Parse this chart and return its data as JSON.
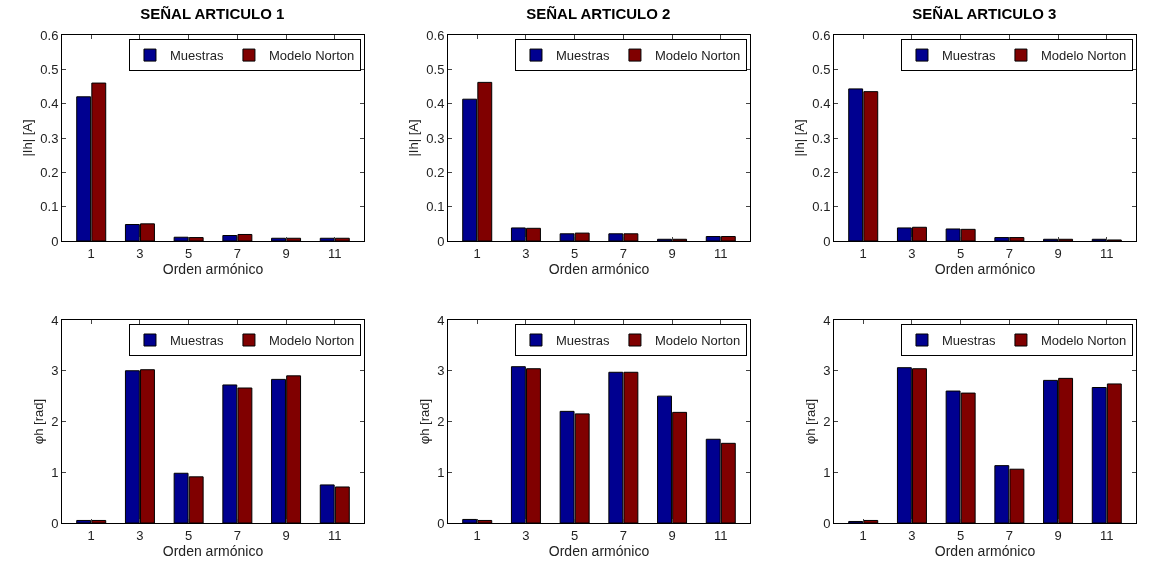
{
  "chart_data": [
    {
      "type": "bar",
      "title": "SEÑAL ARTICULO 1",
      "xlabel": "Orden armónico",
      "ylabel": "|Ih| [A]",
      "categories": [
        "1",
        "3",
        "5",
        "7",
        "9",
        "11"
      ],
      "ylim": [
        0,
        0.6
      ],
      "yticks": [
        0,
        0.1,
        0.2,
        0.3,
        0.4,
        0.5,
        0.6
      ],
      "grid": false,
      "legend": "top right",
      "series": [
        {
          "name": "Muestras",
          "color": "#000090",
          "values": [
            0.42,
            0.048,
            0.011,
            0.016,
            0.008,
            0.008
          ]
        },
        {
          "name": "Modelo Norton",
          "color": "#800000",
          "values": [
            0.46,
            0.05,
            0.01,
            0.019,
            0.008,
            0.008
          ]
        }
      ]
    },
    {
      "type": "bar",
      "title": "SEÑAL ARTICULO 2",
      "xlabel": "Orden armónico",
      "ylabel": "|Ih| [A]",
      "categories": [
        "1",
        "3",
        "5",
        "7",
        "9",
        "11"
      ],
      "ylim": [
        0,
        0.6
      ],
      "yticks": [
        0,
        0.1,
        0.2,
        0.3,
        0.4,
        0.5,
        0.6
      ],
      "grid": false,
      "legend": "top right",
      "series": [
        {
          "name": "Muestras",
          "color": "#000090",
          "values": [
            0.413,
            0.038,
            0.021,
            0.021,
            0.005,
            0.013
          ]
        },
        {
          "name": "Modelo Norton",
          "color": "#800000",
          "values": [
            0.462,
            0.037,
            0.023,
            0.021,
            0.005,
            0.013
          ]
        }
      ]
    },
    {
      "type": "bar",
      "title": "SEÑAL ARTICULO 3",
      "xlabel": "Orden armónico",
      "ylabel": "|Ih| [A]",
      "categories": [
        "1",
        "3",
        "5",
        "7",
        "9",
        "11"
      ],
      "ylim": [
        0,
        0.6
      ],
      "yticks": [
        0,
        0.1,
        0.2,
        0.3,
        0.4,
        0.5,
        0.6
      ],
      "grid": false,
      "legend": "top right",
      "series": [
        {
          "name": "Muestras",
          "color": "#000090",
          "values": [
            0.443,
            0.038,
            0.035,
            0.01,
            0.005,
            0.005
          ]
        },
        {
          "name": "Modelo Norton",
          "color": "#800000",
          "values": [
            0.435,
            0.04,
            0.034,
            0.01,
            0.005,
            0.003
          ]
        }
      ]
    },
    {
      "type": "bar",
      "xlabel": "Orden armónico",
      "ylabel": "φh [rad]",
      "categories": [
        "1",
        "3",
        "5",
        "7",
        "9",
        "11"
      ],
      "ylim": [
        0,
        4
      ],
      "yticks": [
        0,
        1,
        2,
        3,
        4
      ],
      "grid": false,
      "legend": "top right",
      "series": [
        {
          "name": "Muestras",
          "color": "#000090",
          "values": [
            0.05,
            3.0,
            0.98,
            2.72,
            2.83,
            0.75
          ]
        },
        {
          "name": "Modelo Norton",
          "color": "#800000",
          "values": [
            0.05,
            3.02,
            0.91,
            2.66,
            2.9,
            0.71
          ]
        }
      ]
    },
    {
      "type": "bar",
      "xlabel": "Orden armónico",
      "ylabel": "φh [rad]",
      "categories": [
        "1",
        "3",
        "5",
        "7",
        "9",
        "11"
      ],
      "ylim": [
        0,
        4
      ],
      "yticks": [
        0,
        1,
        2,
        3,
        4
      ],
      "grid": false,
      "legend": "top right",
      "series": [
        {
          "name": "Muestras",
          "color": "#000090",
          "values": [
            0.07,
            3.08,
            2.2,
            2.97,
            2.5,
            1.65
          ]
        },
        {
          "name": "Modelo Norton",
          "color": "#800000",
          "values": [
            0.05,
            3.04,
            2.15,
            2.97,
            2.18,
            1.57
          ]
        }
      ]
    },
    {
      "type": "bar",
      "xlabel": "Orden armónico",
      "ylabel": "φh [rad]",
      "categories": [
        "1",
        "3",
        "5",
        "7",
        "9",
        "11"
      ],
      "ylim": [
        0,
        4
      ],
      "yticks": [
        0,
        1,
        2,
        3,
        4
      ],
      "grid": false,
      "legend": "top right",
      "series": [
        {
          "name": "Muestras",
          "color": "#000090",
          "values": [
            0.03,
            3.06,
            2.6,
            1.13,
            2.81,
            2.67
          ]
        },
        {
          "name": "Modelo Norton",
          "color": "#800000",
          "values": [
            0.05,
            3.04,
            2.56,
            1.06,
            2.85,
            2.74
          ]
        }
      ]
    }
  ]
}
